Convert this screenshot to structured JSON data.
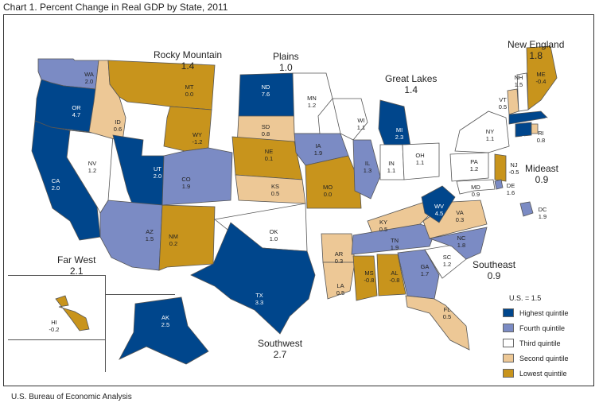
{
  "title": "Chart 1. Percent Change in Real GDP by State, 2011",
  "source": "U.S. Bureau of Economic Analysis",
  "colors": {
    "highest": "#00468c",
    "fourth": "#7b8bc4",
    "third": "#ffffff",
    "second": "#edc896",
    "lowest": "#c8941c",
    "border": "#555555"
  },
  "legend": {
    "us_label": "U.S. = 1.5",
    "items": [
      {
        "label": "Highest quintile",
        "color": "#00468c"
      },
      {
        "label": "Fourth quintile",
        "color": "#7b8bc4"
      },
      {
        "label": "Third quintile",
        "color": "#ffffff"
      },
      {
        "label": "Second quintile",
        "color": "#edc896"
      },
      {
        "label": "Lowest quintile",
        "color": "#c8941c"
      }
    ]
  },
  "regions": [
    {
      "name": "Rocky Mountain",
      "value": "1.4"
    },
    {
      "name": "Plains",
      "value": "1.0"
    },
    {
      "name": "Great Lakes",
      "value": "1.4"
    },
    {
      "name": "New England",
      "value": "1.8"
    },
    {
      "name": "Mideast",
      "value": "0.9"
    },
    {
      "name": "Far West",
      "value": "2.1"
    },
    {
      "name": "Southeast",
      "value": "0.9"
    },
    {
      "name": "Southwest",
      "value": "2.7"
    }
  ],
  "states": [
    {
      "abbr": "WA",
      "value": "2.0",
      "quintile": "fourth"
    },
    {
      "abbr": "OR",
      "value": "4.7",
      "quintile": "highest"
    },
    {
      "abbr": "CA",
      "value": "2.0",
      "quintile": "highest"
    },
    {
      "abbr": "NV",
      "value": "1.2",
      "quintile": "third"
    },
    {
      "abbr": "ID",
      "value": "0.6",
      "quintile": "second"
    },
    {
      "abbr": "MT",
      "value": "0.0",
      "quintile": "lowest"
    },
    {
      "abbr": "WY",
      "value": "-1.2",
      "quintile": "lowest"
    },
    {
      "abbr": "UT",
      "value": "2.0",
      "quintile": "highest"
    },
    {
      "abbr": "CO",
      "value": "1.9",
      "quintile": "fourth"
    },
    {
      "abbr": "AZ",
      "value": "1.5",
      "quintile": "fourth"
    },
    {
      "abbr": "NM",
      "value": "0.2",
      "quintile": "lowest"
    },
    {
      "abbr": "ND",
      "value": "7.6",
      "quintile": "highest"
    },
    {
      "abbr": "SD",
      "value": "0.8",
      "quintile": "second"
    },
    {
      "abbr": "NE",
      "value": "0.1",
      "quintile": "lowest"
    },
    {
      "abbr": "KS",
      "value": "0.5",
      "quintile": "second"
    },
    {
      "abbr": "OK",
      "value": "1.0",
      "quintile": "third"
    },
    {
      "abbr": "TX",
      "value": "3.3",
      "quintile": "highest"
    },
    {
      "abbr": "MN",
      "value": "1.2",
      "quintile": "third"
    },
    {
      "abbr": "IA",
      "value": "1.9",
      "quintile": "fourth"
    },
    {
      "abbr": "MO",
      "value": "0.0",
      "quintile": "lowest"
    },
    {
      "abbr": "AR",
      "value": "0.3",
      "quintile": "second"
    },
    {
      "abbr": "LA",
      "value": "0.5",
      "quintile": "second"
    },
    {
      "abbr": "WI",
      "value": "1.1",
      "quintile": "third"
    },
    {
      "abbr": "IL",
      "value": "1.3",
      "quintile": "fourth"
    },
    {
      "abbr": "MI",
      "value": "2.3",
      "quintile": "highest"
    },
    {
      "abbr": "IN",
      "value": "1.1",
      "quintile": "third"
    },
    {
      "abbr": "OH",
      "value": "1.1",
      "quintile": "third"
    },
    {
      "abbr": "KY",
      "value": "0.5",
      "quintile": "second"
    },
    {
      "abbr": "TN",
      "value": "1.9",
      "quintile": "fourth"
    },
    {
      "abbr": "MS",
      "value": "-0.8",
      "quintile": "lowest"
    },
    {
      "abbr": "AL",
      "value": "-0.8",
      "quintile": "lowest"
    },
    {
      "abbr": "GA",
      "value": "1.7",
      "quintile": "fourth"
    },
    {
      "abbr": "FL",
      "value": "0.5",
      "quintile": "second"
    },
    {
      "abbr": "SC",
      "value": "1.2",
      "quintile": "third"
    },
    {
      "abbr": "NC",
      "value": "1.8",
      "quintile": "fourth"
    },
    {
      "abbr": "VA",
      "value": "0.3",
      "quintile": "second"
    },
    {
      "abbr": "WV",
      "value": "4.5",
      "quintile": "highest"
    },
    {
      "abbr": "PA",
      "value": "1.2",
      "quintile": "third"
    },
    {
      "abbr": "NY",
      "value": "1.1",
      "quintile": "third"
    },
    {
      "abbr": "NJ",
      "value": "-0.5",
      "quintile": "lowest"
    },
    {
      "abbr": "DE",
      "value": "1.6",
      "quintile": "fourth"
    },
    {
      "abbr": "MD",
      "value": "0.9",
      "quintile": "third"
    },
    {
      "abbr": "DC",
      "value": "1.9",
      "quintile": "fourth"
    },
    {
      "abbr": "VT",
      "value": "0.5",
      "quintile": "second"
    },
    {
      "abbr": "NH",
      "value": "1.5",
      "quintile": "third"
    },
    {
      "abbr": "ME",
      "value": "-0.4",
      "quintile": "lowest"
    },
    {
      "abbr": "MA",
      "value": "2.2",
      "quintile": "highest"
    },
    {
      "abbr": "CT",
      "value": "2.0",
      "quintile": "highest"
    },
    {
      "abbr": "RI",
      "value": "0.8",
      "quintile": "second"
    },
    {
      "abbr": "AK",
      "value": "2.5",
      "quintile": "highest"
    },
    {
      "abbr": "HI",
      "value": "-0.2",
      "quintile": "lowest"
    }
  ]
}
